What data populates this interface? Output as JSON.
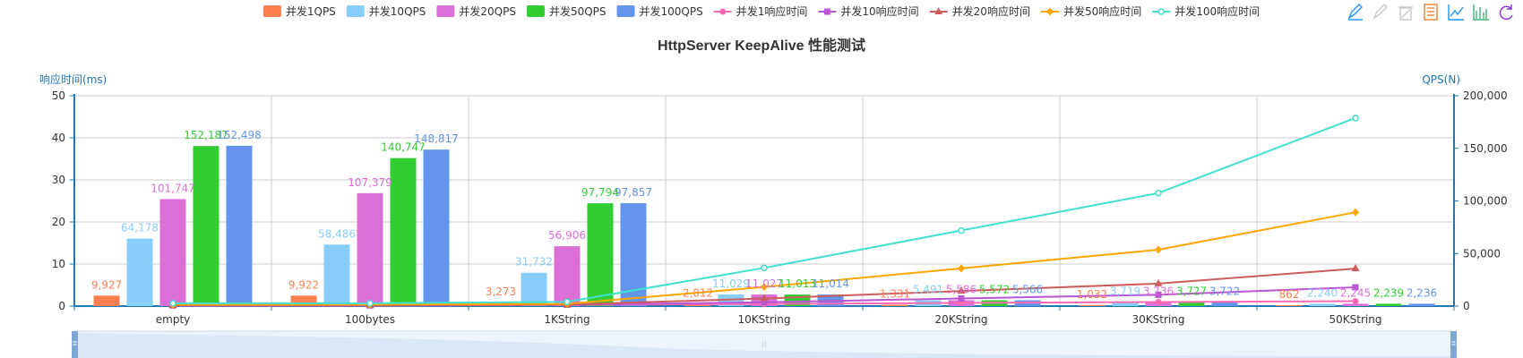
{
  "chart_data": {
    "type": "bar",
    "title": "HttpServer KeepAlive 性能测试",
    "categories": [
      "empty",
      "100bytes",
      "1KString",
      "10KString",
      "20KString",
      "30KString",
      "50KString"
    ],
    "y_left": {
      "name": "响应时间(ms)",
      "range": [
        0,
        50
      ],
      "ticks": [
        "0",
        "10",
        "20",
        "30",
        "40",
        "50"
      ]
    },
    "y_right": {
      "name": "QPS(N)",
      "range": [
        0,
        200000
      ],
      "ticks": [
        "0",
        "50,000",
        "100,000",
        "150,000",
        "200,000"
      ]
    },
    "legend_position": "top-center",
    "grid": true,
    "bar_series": [
      {
        "name": "并发1QPS",
        "color": "#ff7f50",
        "values": [
          9927,
          9922,
          3273,
          2012,
          1331,
          1032,
          862
        ],
        "labels": [
          "9,927",
          "9,922",
          "3,273",
          "2,012",
          "1,331",
          "1,032",
          "862"
        ]
      },
      {
        "name": "并发10QPS",
        "color": "#87cefa",
        "values": [
          64178,
          58486,
          31732,
          11029,
          5491,
          3719,
          2240
        ],
        "labels": [
          "64,178",
          "58,486",
          "31,732",
          "11,029",
          "5,491",
          "3,719",
          "2,240"
        ]
      },
      {
        "name": "并发20QPS",
        "color": "#da70d6",
        "values": [
          101747,
          107379,
          56906,
          11027,
          5586,
          3736,
          2245
        ],
        "labels": [
          "101,747",
          "107,379",
          "56,906",
          "11,027",
          "5,586",
          "3,736",
          "2,245"
        ]
      },
      {
        "name": "并发50QPS",
        "color": "#32cd32",
        "values": [
          152187,
          140747,
          97794,
          11013,
          5572,
          3727,
          2239
        ],
        "labels": [
          "152,187",
          "140,747",
          "97,794",
          "11,013",
          "5,572",
          "3,727",
          "2,239"
        ]
      },
      {
        "name": "并发100QPS",
        "color": "#6495ed",
        "values": [
          152498,
          148817,
          97857,
          11014,
          5566,
          3722,
          2236
        ],
        "labels": [
          "152,498",
          "148,817",
          "97,857",
          "11,014",
          "5,566",
          "3,722",
          "2,236"
        ]
      }
    ],
    "line_series": [
      {
        "name": "并发1响应时间",
        "color": "#ff69b4",
        "marker": "circle",
        "values": [
          0.1,
          0.1,
          0.3,
          0.5,
          0.75,
          0.97,
          1.16
        ]
      },
      {
        "name": "并发10响应时间",
        "color": "#ba55d3",
        "marker": "square",
        "values": [
          0.16,
          0.17,
          0.32,
          0.9,
          1.82,
          2.69,
          4.46
        ]
      },
      {
        "name": "并发20响应时间",
        "color": "#cd5c5c",
        "marker": "triangle",
        "values": [
          0.2,
          0.19,
          0.35,
          1.81,
          3.58,
          5.35,
          8.9
        ]
      },
      {
        "name": "并发50响应时间",
        "color": "#ffa500",
        "marker": "diamond",
        "values": [
          0.33,
          0.36,
          0.51,
          4.54,
          8.97,
          13.4,
          22.3
        ]
      },
      {
        "name": "并发100响应时间",
        "color": "#40e0d0",
        "marker": "emptyCircle",
        "values": [
          0.66,
          0.67,
          1.02,
          9.08,
          17.97,
          26.87,
          44.72
        ]
      }
    ]
  },
  "toolbox": {
    "icons": [
      "mark-icon",
      "mark-undo-icon",
      "mark-clear-icon",
      "data-view-icon",
      "line-chart-icon",
      "bar-chart-icon",
      "restore-icon",
      "save-image-icon"
    ],
    "color": "#1e90ff"
  },
  "datazoom": {
    "start_percent": 0,
    "end_percent": 100
  }
}
